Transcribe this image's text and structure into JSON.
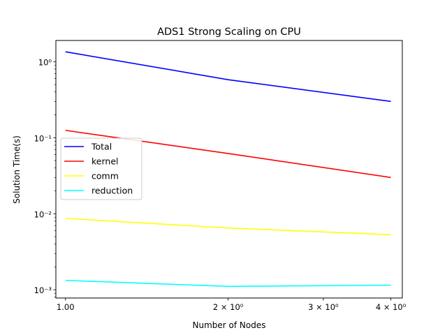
{
  "chart_data": {
    "type": "line",
    "title": "ADS1 Strong Scaling on CPU",
    "xlabel": "Number of Nodes",
    "ylabel": "Solution Time(s)",
    "xscale": "log",
    "yscale": "log",
    "xlim": [
      0.96,
      4.2
    ],
    "ylim": [
      0.00078,
      1.9
    ],
    "x": [
      1,
      2,
      4
    ],
    "x_ticks": [
      {
        "value": 1,
        "label": "1.00"
      },
      {
        "value": 2,
        "label": "2 × 10⁰"
      },
      {
        "value": 3,
        "label": "3 × 10⁰"
      },
      {
        "value": 4,
        "label": "4 × 10⁰"
      }
    ],
    "y_ticks": [
      {
        "value": 0.001,
        "label": "10⁻³"
      },
      {
        "value": 0.01,
        "label": "10⁻²"
      },
      {
        "value": 0.1,
        "label": "10⁻¹"
      },
      {
        "value": 1,
        "label": "10⁰"
      }
    ],
    "series": [
      {
        "name": "Total",
        "color": "#0000ff",
        "values": [
          1.35,
          0.58,
          0.3
        ]
      },
      {
        "name": "kernel",
        "color": "#ff0000",
        "values": [
          0.125,
          0.062,
          0.03
        ]
      },
      {
        "name": "comm",
        "color": "#ffff00",
        "values": [
          0.0087,
          0.0065,
          0.0053
        ]
      },
      {
        "name": "reduction",
        "color": "#00ffff",
        "values": [
          0.00133,
          0.00111,
          0.00115
        ]
      }
    ],
    "legend": "center-left",
    "grid": false
  }
}
